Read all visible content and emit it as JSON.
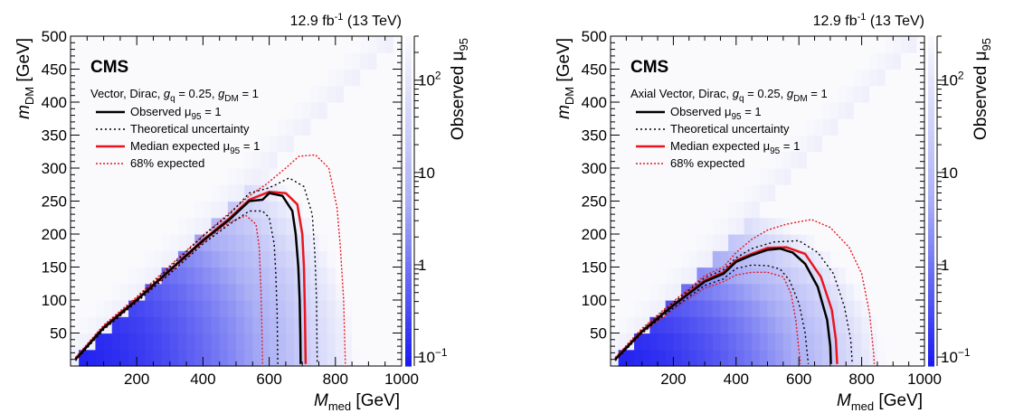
{
  "chart_data": [
    {
      "type": "heatmap",
      "lumi": {
        "main": "12.9 fb",
        "exp": "-1",
        "energy": "(13 TeV)"
      },
      "experiment": "CMS",
      "model": {
        "prefix": "Vector, Dirac, ",
        "gq": "g",
        "gq_sub": "q",
        "gq_val": " = 0.25, ",
        "gdm": "g",
        "gdm_sub": "DM",
        "gdm_val": " = 1"
      },
      "xlabel": {
        "main": "M",
        "sub": "med",
        "unit": " [GeV]"
      },
      "ylabel": {
        "main": "m",
        "sub": "DM",
        "unit": " [GeV]"
      },
      "zlabel": {
        "main": "Observed μ",
        "sub": "95"
      },
      "xlim": [
        0,
        1000
      ],
      "ylim": [
        0,
        500
      ],
      "zlim": [
        0.08,
        300
      ],
      "zscale": "log",
      "xticks": [
        "200",
        "400",
        "600",
        "800",
        "1000"
      ],
      "yticks": [
        "50",
        "100",
        "150",
        "200",
        "250",
        "300",
        "350",
        "400",
        "450",
        "500"
      ],
      "zticks": [
        {
          "base": "10",
          "exp": "−1",
          "value": 0.1
        },
        {
          "base": "1",
          "exp": "",
          "value": 1
        },
        {
          "base": "10",
          "exp": "",
          "value": 10
        },
        {
          "base": "10",
          "exp": "2",
          "value": 100
        }
      ],
      "legend": [
        {
          "style": "solid-black",
          "text": "Observed μ",
          "sub": "95",
          "tail": " = 1"
        },
        {
          "style": "dotted-black",
          "text": "Theoretical uncertainty",
          "sub": "",
          "tail": ""
        },
        {
          "style": "solid-red",
          "text": "Median expected μ",
          "sub": "95",
          "tail": " = 1"
        },
        {
          "style": "dotted-red",
          "text": "68% expected",
          "sub": "",
          "tail": ""
        }
      ],
      "contours": {
        "observed": [
          [
            15,
            10
          ],
          [
            100,
            58
          ],
          [
            200,
            100
          ],
          [
            300,
            145
          ],
          [
            400,
            190
          ],
          [
            480,
            222
          ],
          [
            540,
            250
          ],
          [
            580,
            252
          ],
          [
            600,
            262
          ],
          [
            640,
            258
          ],
          [
            670,
            235
          ],
          [
            680,
            200
          ],
          [
            688,
            150
          ],
          [
            692,
            100
          ],
          [
            694,
            50
          ],
          [
            695,
            3
          ]
        ],
        "theory_inner": [
          [
            15,
            8
          ],
          [
            100,
            55
          ],
          [
            200,
            97
          ],
          [
            300,
            140
          ],
          [
            400,
            185
          ],
          [
            480,
            215
          ],
          [
            540,
            235
          ],
          [
            580,
            235
          ],
          [
            600,
            225
          ],
          [
            615,
            185
          ],
          [
            620,
            140
          ],
          [
            624,
            80
          ],
          [
            626,
            3
          ]
        ],
        "theory_outer": [
          [
            15,
            12
          ],
          [
            100,
            60
          ],
          [
            200,
            103
          ],
          [
            300,
            150
          ],
          [
            400,
            197
          ],
          [
            480,
            230
          ],
          [
            540,
            262
          ],
          [
            600,
            270
          ],
          [
            660,
            285
          ],
          [
            705,
            272
          ],
          [
            730,
            230
          ],
          [
            738,
            170
          ],
          [
            743,
            100
          ],
          [
            745,
            3
          ]
        ],
        "expected": [
          [
            15,
            11
          ],
          [
            100,
            59
          ],
          [
            200,
            101
          ],
          [
            300,
            146
          ],
          [
            400,
            191
          ],
          [
            480,
            224
          ],
          [
            540,
            252
          ],
          [
            600,
            264
          ],
          [
            650,
            262
          ],
          [
            685,
            245
          ],
          [
            700,
            200
          ],
          [
            705,
            150
          ],
          [
            708,
            80
          ],
          [
            710,
            3
          ]
        ],
        "exp68_inner": [
          [
            15,
            9
          ],
          [
            100,
            56
          ],
          [
            200,
            98
          ],
          [
            300,
            142
          ],
          [
            400,
            187
          ],
          [
            480,
            218
          ],
          [
            530,
            228
          ],
          [
            560,
            215
          ],
          [
            570,
            180
          ],
          [
            575,
            120
          ],
          [
            578,
            60
          ],
          [
            580,
            3
          ]
        ],
        "exp68_outer": [
          [
            15,
            13
          ],
          [
            100,
            62
          ],
          [
            200,
            105
          ],
          [
            300,
            152
          ],
          [
            400,
            198
          ],
          [
            480,
            232
          ],
          [
            540,
            258
          ],
          [
            590,
            275
          ],
          [
            650,
            300
          ],
          [
            690,
            318
          ],
          [
            740,
            320
          ],
          [
            780,
            300
          ],
          [
            805,
            240
          ],
          [
            815,
            180
          ],
          [
            825,
            100
          ],
          [
            830,
            3
          ]
        ]
      }
    },
    {
      "type": "heatmap",
      "lumi": {
        "main": "12.9 fb",
        "exp": "-1",
        "energy": "(13 TeV)"
      },
      "experiment": "CMS",
      "model": {
        "prefix": "Axial Vector, Dirac, ",
        "gq": "g",
        "gq_sub": "q",
        "gq_val": " = 0.25, ",
        "gdm": "g",
        "gdm_sub": "DM",
        "gdm_val": " = 1"
      },
      "xlabel": {
        "main": "M",
        "sub": "med",
        "unit": " [GeV]"
      },
      "ylabel": {
        "main": "m",
        "sub": "DM",
        "unit": " [GeV]"
      },
      "zlabel": {
        "main": "Observed μ",
        "sub": "95"
      },
      "xlim": [
        0,
        1000
      ],
      "ylim": [
        0,
        500
      ],
      "zlim": [
        0.08,
        300
      ],
      "zscale": "log",
      "xticks": [
        "200",
        "400",
        "600",
        "800",
        "1000"
      ],
      "yticks": [
        "50",
        "100",
        "150",
        "200",
        "250",
        "300",
        "350",
        "400",
        "450",
        "500"
      ],
      "zticks": [
        {
          "base": "10",
          "exp": "−1",
          "value": 0.1
        },
        {
          "base": "1",
          "exp": "",
          "value": 1
        },
        {
          "base": "10",
          "exp": "",
          "value": 10
        },
        {
          "base": "10",
          "exp": "2",
          "value": 100
        }
      ],
      "legend": [
        {
          "style": "solid-black",
          "text": "Observed μ",
          "sub": "95",
          "tail": " = 1"
        },
        {
          "style": "dotted-black",
          "text": "Theoretical uncertainty",
          "sub": "",
          "tail": ""
        },
        {
          "style": "solid-red",
          "text": "Median expected μ",
          "sub": "95",
          "tail": " = 1"
        },
        {
          "style": "dotted-red",
          "text": "68% expected",
          "sub": "",
          "tail": ""
        }
      ],
      "contours": {
        "observed": [
          [
            15,
            10
          ],
          [
            100,
            52
          ],
          [
            200,
            92
          ],
          [
            300,
            128
          ],
          [
            360,
            140
          ],
          [
            400,
            158
          ],
          [
            450,
            168
          ],
          [
            500,
            176
          ],
          [
            540,
            178
          ],
          [
            580,
            172
          ],
          [
            620,
            155
          ],
          [
            660,
            120
          ],
          [
            690,
            70
          ],
          [
            700,
            30
          ],
          [
            702,
            3
          ]
        ],
        "theory_inner": [
          [
            15,
            8
          ],
          [
            100,
            50
          ],
          [
            200,
            88
          ],
          [
            300,
            122
          ],
          [
            360,
            132
          ],
          [
            400,
            148
          ],
          [
            450,
            153
          ],
          [
            500,
            152
          ],
          [
            540,
            147
          ],
          [
            570,
            130
          ],
          [
            600,
            95
          ],
          [
            620,
            50
          ],
          [
            630,
            3
          ]
        ],
        "theory_outer": [
          [
            15,
            12
          ],
          [
            100,
            55
          ],
          [
            200,
            96
          ],
          [
            300,
            134
          ],
          [
            360,
            146
          ],
          [
            400,
            164
          ],
          [
            450,
            178
          ],
          [
            520,
            188
          ],
          [
            600,
            190
          ],
          [
            660,
            172
          ],
          [
            710,
            140
          ],
          [
            745,
            90
          ],
          [
            765,
            40
          ],
          [
            770,
            3
          ]
        ],
        "expected": [
          [
            15,
            11
          ],
          [
            100,
            53
          ],
          [
            200,
            93
          ],
          [
            300,
            130
          ],
          [
            360,
            142
          ],
          [
            400,
            160
          ],
          [
            450,
            170
          ],
          [
            500,
            179
          ],
          [
            560,
            180
          ],
          [
            620,
            170
          ],
          [
            670,
            135
          ],
          [
            705,
            85
          ],
          [
            718,
            40
          ],
          [
            722,
            3
          ]
        ],
        "exp68_inner": [
          [
            15,
            9
          ],
          [
            100,
            49
          ],
          [
            200,
            86
          ],
          [
            300,
            118
          ],
          [
            360,
            128
          ],
          [
            400,
            138
          ],
          [
            450,
            142
          ],
          [
            500,
            142
          ],
          [
            550,
            135
          ],
          [
            575,
            110
          ],
          [
            590,
            70
          ],
          [
            600,
            25
          ],
          [
            605,
            3
          ]
        ],
        "exp68_outer": [
          [
            15,
            13
          ],
          [
            100,
            57
          ],
          [
            200,
            98
          ],
          [
            300,
            137
          ],
          [
            360,
            150
          ],
          [
            400,
            172
          ],
          [
            450,
            192
          ],
          [
            500,
            206
          ],
          [
            560,
            215
          ],
          [
            640,
            222
          ],
          [
            700,
            210
          ],
          [
            760,
            180
          ],
          [
            800,
            140
          ],
          [
            825,
            80
          ],
          [
            838,
            20
          ],
          [
            840,
            3
          ]
        ]
      }
    }
  ]
}
